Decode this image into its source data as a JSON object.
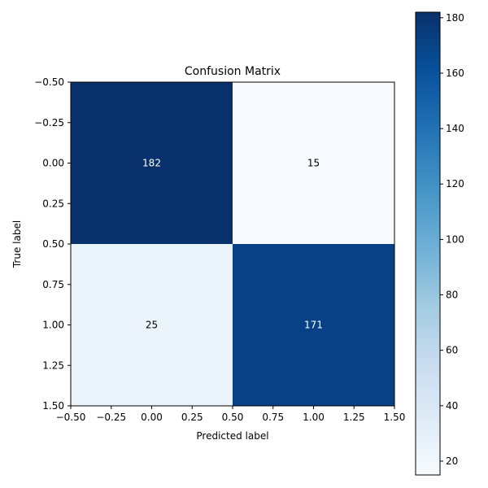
{
  "chart_data": {
    "type": "heatmap",
    "title": "Confusion Matrix",
    "xlabel": "Predicted label",
    "ylabel": "True label",
    "matrix": [
      [
        182,
        15
      ],
      [
        25,
        171
      ]
    ],
    "cell_labels": [
      [
        "182",
        "15"
      ],
      [
        "25",
        "171"
      ]
    ],
    "xlim": [
      -0.5,
      1.5
    ],
    "ylim": [
      -0.5,
      1.5
    ],
    "y_inverted": true,
    "x_ticks": [
      -0.5,
      -0.25,
      0.0,
      0.25,
      0.5,
      0.75,
      1.0,
      1.25,
      1.5
    ],
    "x_tick_labels": [
      "−0.50",
      "−0.25",
      "0.00",
      "0.25",
      "0.50",
      "0.75",
      "1.00",
      "1.25",
      "1.50"
    ],
    "y_ticks": [
      -0.5,
      -0.25,
      0.0,
      0.25,
      0.5,
      0.75,
      1.0,
      1.25,
      1.5
    ],
    "y_tick_labels": [
      "−0.50",
      "−0.25",
      "0.00",
      "0.25",
      "0.50",
      "0.75",
      "1.00",
      "1.25",
      "1.50"
    ],
    "colormap": "Blues",
    "colorbar": {
      "vmin": 15,
      "vmax": 182,
      "ticks": [
        20,
        40,
        60,
        80,
        100,
        120,
        140,
        160,
        180
      ],
      "tick_labels": [
        "20",
        "40",
        "60",
        "80",
        "100",
        "120",
        "140",
        "160",
        "180"
      ]
    },
    "grid": false,
    "legend": "none"
  }
}
